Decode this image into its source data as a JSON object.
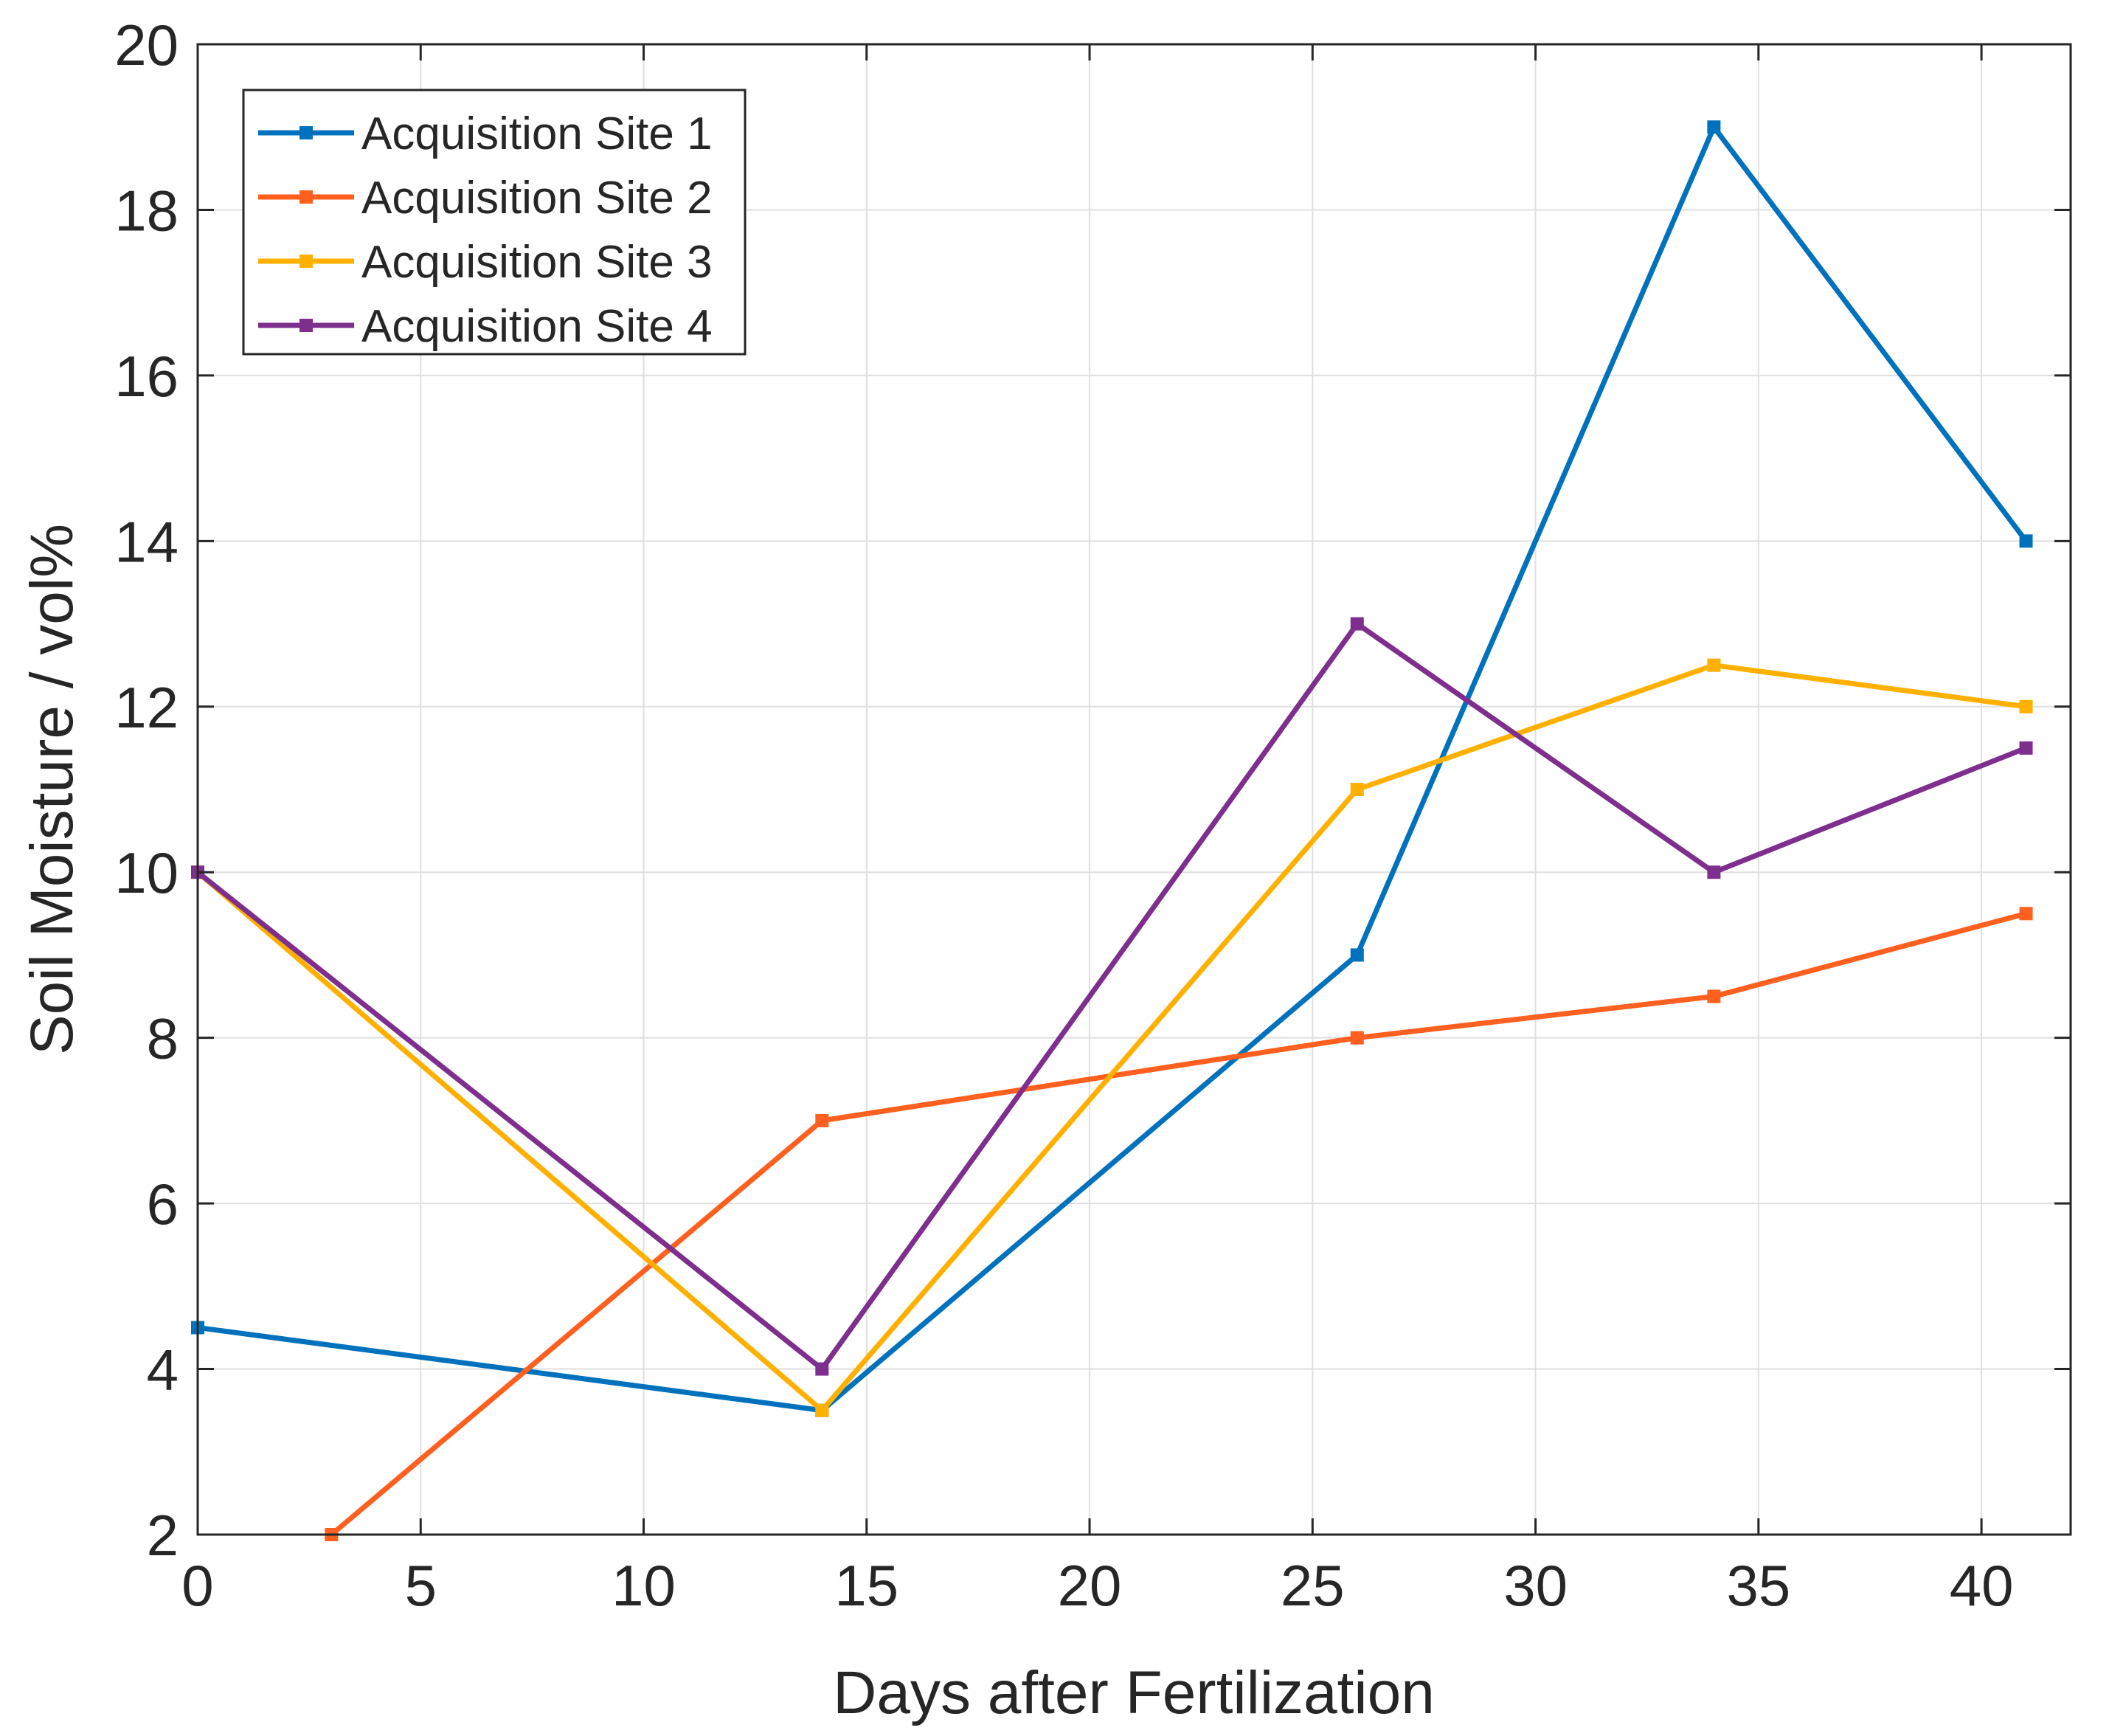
{
  "chart_data": {
    "type": "line",
    "title": "",
    "xlabel": "Days after Fertilization",
    "ylabel": "Soil Moisture / vol%",
    "xlim": [
      0,
      42
    ],
    "ylim": [
      2,
      20
    ],
    "xticks": [
      0,
      5,
      10,
      15,
      20,
      25,
      30,
      35,
      40
    ],
    "yticks": [
      2,
      4,
      6,
      8,
      10,
      12,
      14,
      16,
      18,
      20
    ],
    "grid": true,
    "legend_position": "top-left",
    "series": [
      {
        "name": "Acquisition Site 1",
        "color": "#0072BD",
        "x": [
          0,
          14,
          26,
          34,
          41
        ],
        "y": [
          4.5,
          3.5,
          9,
          19,
          14
        ]
      },
      {
        "name": "Acquisition Site 2",
        "color": "#FF5F1F",
        "x": [
          3,
          14,
          26,
          34,
          41
        ],
        "y": [
          2,
          7,
          8,
          8.5,
          9.5
        ]
      },
      {
        "name": "Acquisition Site 3",
        "color": "#FFB000",
        "x": [
          0,
          14,
          26,
          34,
          41
        ],
        "y": [
          10,
          3.5,
          11,
          12.5,
          12
        ]
      },
      {
        "name": "Acquisition Site 4",
        "color": "#7E2F8E",
        "x": [
          0,
          14,
          26,
          34,
          41
        ],
        "y": [
          10,
          4,
          13,
          10,
          11.5
        ]
      }
    ]
  }
}
